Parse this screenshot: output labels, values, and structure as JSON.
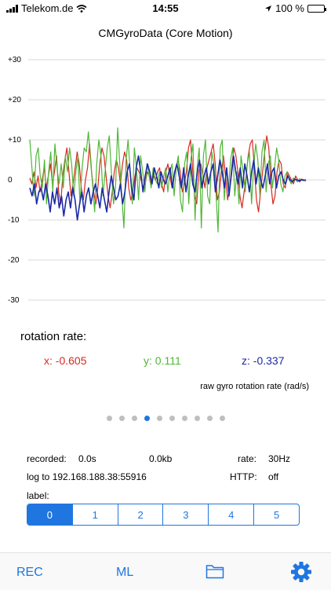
{
  "status": {
    "carrier": "Telekom.de",
    "time": "14:55",
    "battery": "100 %"
  },
  "title": "CMGyroData (Core Motion)",
  "chart_data": {
    "type": "line",
    "yticks": [
      "+30",
      "+20",
      "+10",
      "0",
      "-10",
      "-20",
      "-30"
    ],
    "ylim": [
      -30,
      30
    ],
    "series": [
      {
        "color": "#d8281e",
        "values": [
          0.5,
          -1,
          2,
          -2,
          1,
          -3,
          0,
          3,
          -2,
          1,
          4,
          -1,
          2,
          6,
          -3,
          -6,
          1,
          5,
          8,
          2,
          -4,
          -1,
          3,
          7,
          4,
          -2,
          -5,
          0,
          3,
          9,
          2,
          -3,
          -6,
          -2,
          4,
          8,
          6,
          1,
          -4,
          -7,
          -3,
          2,
          5,
          3,
          -1,
          4,
          7,
          5,
          -2,
          -5,
          -3,
          1,
          3,
          2,
          0,
          -2,
          -1,
          2,
          1,
          -1,
          1,
          0,
          2,
          3,
          -1,
          -3,
          2,
          4,
          1,
          -2,
          1,
          3,
          5,
          2,
          -3,
          -1,
          2,
          8,
          10,
          3,
          -4,
          -6,
          2,
          4,
          1,
          -2,
          3,
          5,
          7,
          9,
          4,
          -5,
          -3,
          2,
          6,
          1,
          -5,
          -2,
          3,
          8,
          6,
          2,
          -4,
          -7,
          -3,
          1,
          6,
          9,
          10,
          3,
          -5,
          -8,
          -3,
          2,
          7,
          11,
          8,
          -1,
          -6,
          -4,
          2,
          5,
          4,
          -1,
          -2,
          2,
          1,
          0,
          -1,
          1,
          0,
          -0.5,
          0.2,
          0,
          -0.3
        ]
      },
      {
        "color": "#4fb737",
        "values": [
          10,
          3,
          -4,
          6,
          8,
          1,
          -2,
          5,
          -6,
          2,
          7,
          -3,
          9,
          3,
          -1,
          4,
          -2,
          6,
          2,
          8,
          4,
          -4,
          2,
          6,
          -6,
          3,
          8,
          7,
          12,
          5,
          -1,
          -8,
          4,
          10,
          6,
          -4,
          2,
          8,
          11,
          2,
          -6,
          -2,
          13,
          4,
          -4,
          -12,
          5,
          10,
          2,
          -6,
          8,
          3,
          -5,
          6,
          2,
          -3,
          4,
          1,
          -2,
          3,
          0,
          -1,
          2,
          -2,
          1,
          3,
          -3,
          2,
          4,
          -4,
          3,
          6,
          -5,
          -8,
          4,
          7,
          -6,
          5,
          9,
          -10,
          3,
          8,
          -12,
          6,
          10,
          -4,
          -6,
          7,
          4,
          -3,
          -13,
          8,
          10,
          -5,
          3,
          -2,
          5,
          8,
          -4,
          2,
          -6,
          6,
          2,
          -3,
          4,
          7,
          -6,
          3,
          9,
          5,
          -4,
          7,
          10,
          -3,
          4,
          6,
          -2,
          3,
          8,
          5,
          -1,
          -3,
          1,
          2,
          0,
          -1,
          0.5,
          0,
          -0.5,
          0.3,
          0,
          -0.2,
          0
        ]
      },
      {
        "color": "#1c2aa6",
        "values": [
          -2,
          -4,
          -1,
          -6,
          -3,
          -2,
          -5,
          -1,
          -4,
          -8,
          -3,
          -6,
          -2,
          -7,
          -4,
          -9,
          -5,
          -3,
          -7,
          -2,
          -5,
          -10,
          -6,
          -3,
          -8,
          -4,
          -2,
          -6,
          -3,
          -1,
          -4,
          -7,
          -2,
          -5,
          -8,
          -3,
          1,
          -2,
          -5,
          -4,
          -1,
          -6,
          -3,
          2,
          4,
          -2,
          -5,
          3,
          6,
          2,
          -3,
          1,
          4,
          2,
          -1,
          3,
          1,
          -2,
          2,
          0,
          -1,
          1,
          3,
          -2,
          2,
          4,
          1,
          -2,
          3,
          -3,
          1,
          4,
          -1,
          -3,
          2,
          5,
          -2,
          1,
          3,
          -1,
          2,
          4,
          -3,
          1,
          5,
          2,
          -2,
          3,
          -4,
          1,
          6,
          2,
          -1,
          3,
          -2,
          4,
          1,
          -3,
          2,
          5,
          -1,
          3,
          0,
          -2,
          1,
          4,
          -1,
          2,
          3,
          -2,
          1,
          2,
          0,
          -1,
          1,
          0,
          -0.5,
          0.2,
          0,
          -0.2,
          0,
          -0.1,
          0
        ]
      }
    ]
  },
  "section_label": "rotation rate:",
  "values": {
    "x": "x: -0.605",
    "y": "y: 0.111",
    "z": "z: -0.337"
  },
  "raw_label": "raw gyro rotation rate (rad/s)",
  "pager": {
    "count": 10,
    "active": 3
  },
  "info": {
    "recorded_label": "recorded:",
    "recorded_value": "0.0s",
    "size": "0.0kb",
    "rate_label": "rate:",
    "rate_value": "30Hz",
    "log": "log to 192.168.188.38:55916",
    "http_label": "HTTP:",
    "http_value": "off",
    "label_label": "label:"
  },
  "segments": [
    "0",
    "1",
    "2",
    "3",
    "4",
    "5"
  ],
  "selected_segment": 0,
  "tabs": {
    "rec": "REC",
    "ml": "ML"
  },
  "colors": {
    "accent": "#1f76e0",
    "x": "#d8281e",
    "y": "#4fb737",
    "z": "#1c2aa6"
  }
}
